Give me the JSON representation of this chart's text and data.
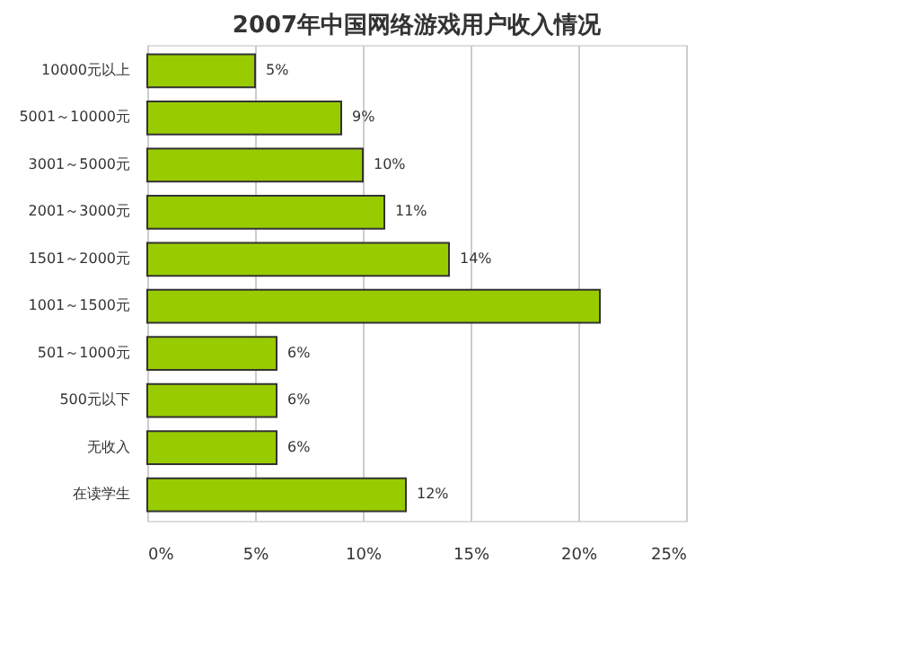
{
  "chart_data": {
    "type": "bar",
    "orientation": "horizontal",
    "title": "2007年中国网络游戏用户收入情况",
    "categories": [
      "10000元以上",
      "5001～10000元",
      "3001～5000元",
      "2001～3000元",
      "1501～2000元",
      "1001～1500元",
      "501～1000元",
      "500元以下",
      "无收入",
      "在读学生"
    ],
    "values": [
      5,
      9,
      10,
      11,
      14,
      21,
      6,
      6,
      6,
      12
    ],
    "value_labels": [
      "5%",
      "9%",
      "10%",
      "11%",
      "14%",
      null,
      "6%",
      "6%",
      "6%",
      "12%"
    ],
    "color": "#99cc00",
    "xlim": [
      0,
      25
    ],
    "xticks": [
      {
        "value": 0,
        "label": "0%"
      },
      {
        "value": 5,
        "label": "5%"
      },
      {
        "value": 10,
        "label": "10%"
      },
      {
        "value": 15,
        "label": "15%"
      },
      {
        "value": 20,
        "label": "20%"
      },
      {
        "value": 25,
        "label": "25%"
      }
    ],
    "grid": "x"
  }
}
